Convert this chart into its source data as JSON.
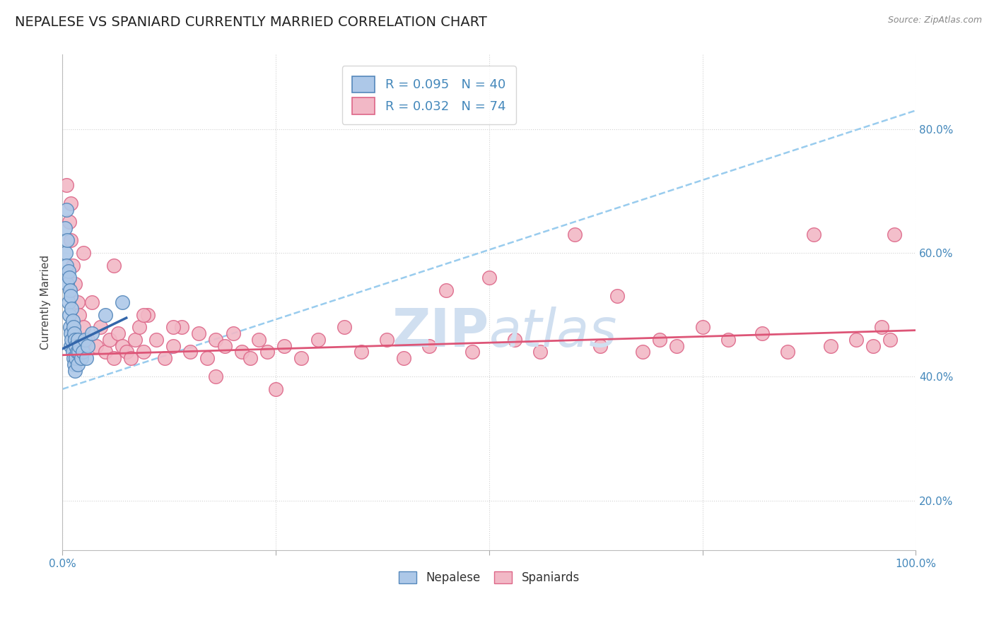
{
  "title": "NEPALESE VS SPANIARD CURRENTLY MARRIED CORRELATION CHART",
  "source_text": "Source: ZipAtlas.com",
  "ylabel": "Currently Married",
  "legend_label1": "R = 0.095   N = 40",
  "legend_label2": "R = 0.032   N = 74",
  "legend_bottom1": "Nepalese",
  "legend_bottom2": "Spaniards",
  "nepalese_x": [
    0.003,
    0.004,
    0.005,
    0.005,
    0.006,
    0.006,
    0.007,
    0.007,
    0.008,
    0.008,
    0.009,
    0.009,
    0.01,
    0.01,
    0.01,
    0.011,
    0.011,
    0.012,
    0.012,
    0.013,
    0.013,
    0.014,
    0.014,
    0.015,
    0.015,
    0.016,
    0.016,
    0.017,
    0.018,
    0.018,
    0.019,
    0.02,
    0.022,
    0.024,
    0.026,
    0.028,
    0.03,
    0.035,
    0.05,
    0.07
  ],
  "nepalese_y": [
    0.64,
    0.6,
    0.67,
    0.58,
    0.62,
    0.55,
    0.57,
    0.52,
    0.56,
    0.5,
    0.54,
    0.48,
    0.53,
    0.47,
    0.45,
    0.51,
    0.46,
    0.49,
    0.44,
    0.48,
    0.43,
    0.47,
    0.42,
    0.46,
    0.41,
    0.45,
    0.43,
    0.44,
    0.46,
    0.42,
    0.44,
    0.45,
    0.43,
    0.44,
    0.46,
    0.43,
    0.45,
    0.47,
    0.5,
    0.52
  ],
  "spaniards_x": [
    0.005,
    0.008,
    0.01,
    0.012,
    0.015,
    0.018,
    0.02,
    0.025,
    0.03,
    0.035,
    0.04,
    0.045,
    0.05,
    0.055,
    0.06,
    0.065,
    0.07,
    0.075,
    0.08,
    0.085,
    0.09,
    0.095,
    0.1,
    0.11,
    0.12,
    0.13,
    0.14,
    0.15,
    0.16,
    0.17,
    0.18,
    0.19,
    0.2,
    0.21,
    0.22,
    0.23,
    0.24,
    0.26,
    0.28,
    0.3,
    0.33,
    0.35,
    0.38,
    0.4,
    0.43,
    0.45,
    0.48,
    0.5,
    0.53,
    0.56,
    0.6,
    0.63,
    0.65,
    0.68,
    0.7,
    0.72,
    0.75,
    0.78,
    0.82,
    0.85,
    0.88,
    0.9,
    0.93,
    0.95,
    0.96,
    0.97,
    0.975,
    0.01,
    0.025,
    0.06,
    0.095,
    0.13,
    0.18,
    0.25
  ],
  "spaniards_y": [
    0.71,
    0.65,
    0.62,
    0.58,
    0.55,
    0.52,
    0.5,
    0.48,
    0.46,
    0.52,
    0.45,
    0.48,
    0.44,
    0.46,
    0.43,
    0.47,
    0.45,
    0.44,
    0.43,
    0.46,
    0.48,
    0.44,
    0.5,
    0.46,
    0.43,
    0.45,
    0.48,
    0.44,
    0.47,
    0.43,
    0.46,
    0.45,
    0.47,
    0.44,
    0.43,
    0.46,
    0.44,
    0.45,
    0.43,
    0.46,
    0.48,
    0.44,
    0.46,
    0.43,
    0.45,
    0.54,
    0.44,
    0.56,
    0.46,
    0.44,
    0.63,
    0.45,
    0.53,
    0.44,
    0.46,
    0.45,
    0.48,
    0.46,
    0.47,
    0.44,
    0.63,
    0.45,
    0.46,
    0.45,
    0.48,
    0.46,
    0.63,
    0.68,
    0.6,
    0.58,
    0.5,
    0.48,
    0.4,
    0.38
  ],
  "nepalese_color": "#adc8e8",
  "nepalese_edge_color": "#5588bb",
  "spaniards_color": "#f2b8c6",
  "spaniards_edge_color": "#dd6688",
  "trend_nepalese_color": "#3366aa",
  "trend_spaniards_color": "#dd5577",
  "trend_dashed_color": "#99ccee",
  "background_color": "#ffffff",
  "grid_color": "#cccccc",
  "title_color": "#222222",
  "axis_label_color": "#4488bb",
  "watermark_color": "#d0dff0",
  "xlim": [
    0.0,
    1.0
  ],
  "ylim": [
    0.12,
    0.92
  ],
  "figsize": [
    14.06,
    8.92
  ],
  "dpi": 100,
  "nepalese_trend_x0": 0.0,
  "nepalese_trend_x1": 0.075,
  "spaniards_trend_x0": 0.0,
  "spaniards_trend_x1": 1.0,
  "dashed_trend_x0": 0.0,
  "dashed_trend_x1": 1.0,
  "nepalese_trend_y0": 0.445,
  "nepalese_trend_y1": 0.495,
  "spaniards_trend_y0": 0.435,
  "spaniards_trend_y1": 0.475,
  "dashed_trend_y0": 0.38,
  "dashed_trend_y1": 0.83
}
